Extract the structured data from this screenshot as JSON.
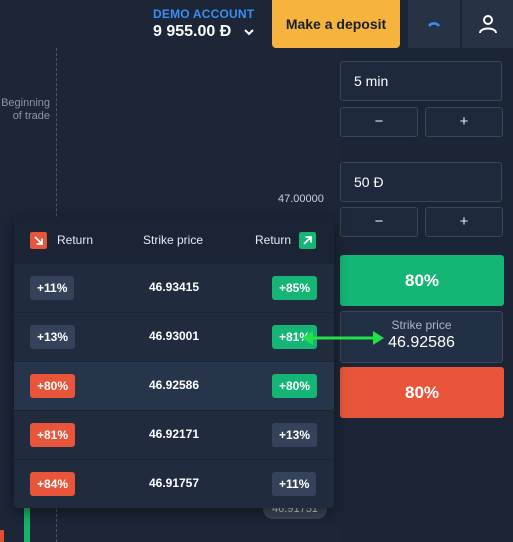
{
  "chart": {
    "beginning_label": "Beginning of trade",
    "price_top": "47.00000",
    "price_bottom": "46.91751"
  },
  "header": {
    "account_label": "DEMO ACCOUNT",
    "balance": "9 955.00 Đ",
    "deposit_label": "Make a deposit"
  },
  "panel": {
    "time_value": "5 min",
    "amount_value": "50 Đ",
    "minus": "−",
    "plus": "+",
    "up_button": "80%",
    "down_button": "80%",
    "strike_label": "Strike price",
    "strike_value": "46.92586"
  },
  "table": {
    "col_left": "Return",
    "col_mid": "Strike price",
    "col_right": "Return",
    "rows": [
      {
        "left": "+11%",
        "strike": "46.93415",
        "right": "+85%",
        "left_color": "dark",
        "right_color": "green"
      },
      {
        "left": "+13%",
        "strike": "46.93001",
        "right": "+81%",
        "left_color": "dark",
        "right_color": "green"
      },
      {
        "left": "+80%",
        "strike": "46.92586",
        "right": "+80%",
        "left_color": "red",
        "right_color": "green"
      },
      {
        "left": "+81%",
        "strike": "46.92171",
        "right": "+13%",
        "left_color": "red",
        "right_color": "dark"
      },
      {
        "left": "+84%",
        "strike": "46.91757",
        "right": "+11%",
        "left_color": "red",
        "right_color": "dark"
      }
    ]
  },
  "colors": {
    "green": "#14b575",
    "red": "#e8553a",
    "accent_blue": "#3a8ff0",
    "deposit": "#f6b33d"
  }
}
